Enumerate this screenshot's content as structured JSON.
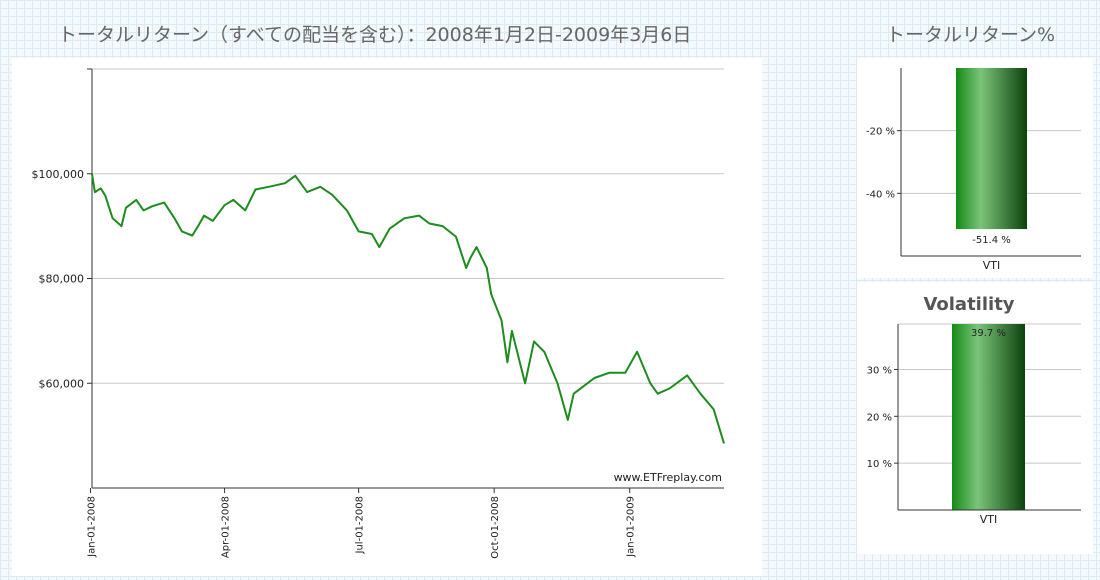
{
  "header": {
    "main_title": "トータルリターン（すべての配当を含む）：2008年1月2日-2009年3月6日",
    "side_title": "トータルリターン%"
  },
  "chart_data": [
    {
      "type": "line",
      "series": [
        {
          "color": "#1e8b1e",
          "x": [
            "2008-01-02",
            "2008-01-04",
            "2008-01-08",
            "2008-01-11",
            "2008-01-16",
            "2008-01-22",
            "2008-01-25",
            "2008-02-01",
            "2008-02-06",
            "2008-02-12",
            "2008-02-20",
            "2008-02-27",
            "2008-03-03",
            "2008-03-10",
            "2008-03-14",
            "2008-03-18",
            "2008-03-24",
            "2008-04-01",
            "2008-04-07",
            "2008-04-15",
            "2008-04-22",
            "2008-05-01",
            "2008-05-12",
            "2008-05-19",
            "2008-05-27",
            "2008-06-05",
            "2008-06-13",
            "2008-06-23",
            "2008-07-01",
            "2008-07-10",
            "2008-07-15",
            "2008-07-22",
            "2008-08-01",
            "2008-08-11",
            "2008-08-18",
            "2008-08-27",
            "2008-09-05",
            "2008-09-12",
            "2008-09-15",
            "2008-09-19",
            "2008-09-26",
            "2008-09-29",
            "2008-10-06",
            "2008-10-10",
            "2008-10-13",
            "2008-10-22",
            "2008-10-28",
            "2008-11-04",
            "2008-11-13",
            "2008-11-20",
            "2008-11-24",
            "2008-12-08",
            "2008-12-18",
            "2008-12-29",
            "2009-01-06",
            "2009-01-15",
            "2009-01-20",
            "2009-01-28",
            "2009-02-09",
            "2009-02-18",
            "2009-02-27",
            "2009-03-06"
          ],
          "y": [
            100000,
            96500,
            97200,
            95800,
            91500,
            90000,
            93500,
            95000,
            93000,
            93800,
            94500,
            91500,
            89000,
            88200,
            90000,
            92000,
            91000,
            94000,
            95000,
            93000,
            97000,
            97500,
            98200,
            99600,
            96500,
            97500,
            96000,
            93000,
            89000,
            88500,
            86000,
            89500,
            91500,
            92000,
            90500,
            90000,
            88000,
            82000,
            84000,
            86000,
            82000,
            77000,
            72000,
            64000,
            70000,
            60000,
            68000,
            66000,
            60000,
            53000,
            58000,
            61000,
            62000,
            62000,
            66000,
            60000,
            58000,
            59000,
            61500,
            58000,
            55000,
            48500
          ]
        }
      ],
      "ylim": [
        40000,
        120000
      ],
      "yticks": [
        60000,
        80000,
        100000
      ],
      "ytick_labels": [
        "$60,000",
        "$80,000",
        "$100,000"
      ],
      "xticks": [
        "2008-01-01",
        "2008-04-01",
        "2008-07-01",
        "2008-10-01",
        "2009-01-01"
      ],
      "xtick_labels": [
        "Jan-01-2008",
        "Apr-01-2008",
        "Jul-01-2008",
        "Oct-01-2008",
        "Jan-01-2009"
      ],
      "xlim": [
        "2008-01-02",
        "2009-03-06"
      ],
      "grid": "horizontal",
      "watermark": "www.ETFreplay.com"
    },
    {
      "type": "bar",
      "categories": [
        "VTI"
      ],
      "values": [
        -51.4
      ],
      "value_labels": [
        "-51.4 %"
      ],
      "ylim": [
        -60,
        0
      ],
      "yticks": [
        -40,
        -20
      ],
      "ytick_labels": [
        "-40 %",
        "-20 %"
      ],
      "grid": "horizontal",
      "bar_color": "#1e8b1e"
    },
    {
      "type": "bar",
      "title": "Volatility",
      "categories": [
        "VTI"
      ],
      "values": [
        39.7
      ],
      "value_labels": [
        "39.7 %"
      ],
      "ylim": [
        0,
        39.7
      ],
      "yticks": [
        10,
        20,
        30
      ],
      "ytick_labels": [
        "10 %",
        "20 %",
        "30 %"
      ],
      "grid": "horizontal",
      "bar_color": "#1e8b1e"
    }
  ]
}
